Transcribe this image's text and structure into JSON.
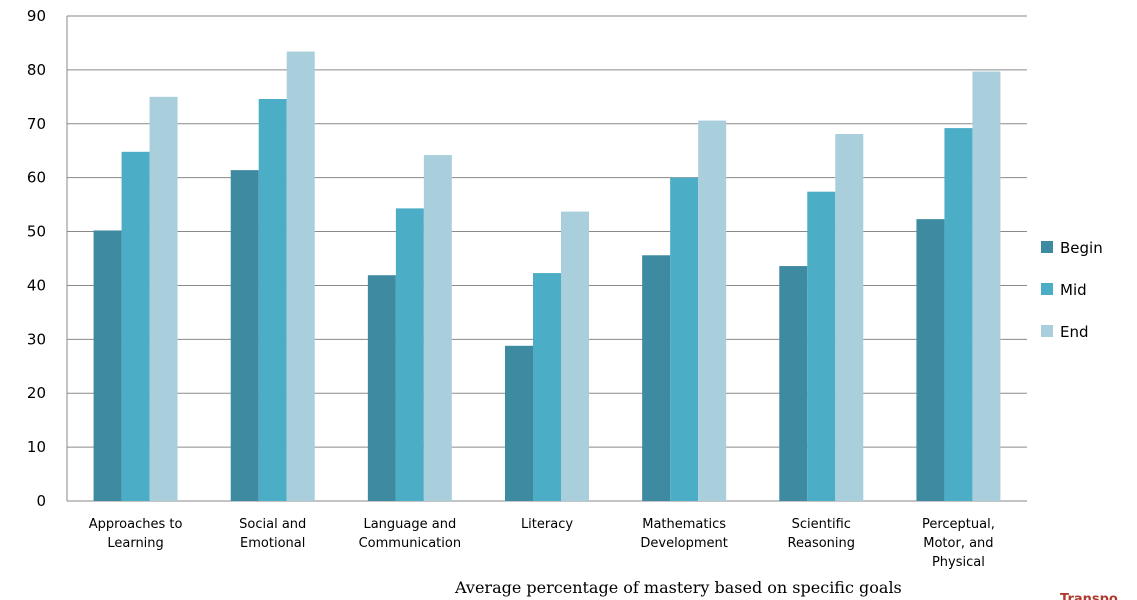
{
  "chart_data": {
    "type": "bar",
    "categories": [
      [
        "Approaches to",
        "Learning"
      ],
      [
        "Social and",
        "Emotional"
      ],
      [
        "Language and",
        "Communication"
      ],
      [
        "Literacy"
      ],
      [
        "Mathematics",
        "Development"
      ],
      [
        "Scientific",
        "Reasoning"
      ],
      [
        "Perceptual,",
        "Motor, and",
        "Physical"
      ]
    ],
    "series": [
      {
        "name": "Begin",
        "color": "#3e8aa1",
        "values": [
          50.2,
          61.4,
          41.9,
          28.8,
          45.6,
          43.6,
          52.3
        ]
      },
      {
        "name": "Mid",
        "color": "#4cadc7",
        "values": [
          64.8,
          74.6,
          54.3,
          42.3,
          60.0,
          57.4,
          69.2
        ]
      },
      {
        "name": "End",
        "color": "#a9cfdd",
        "values": [
          75.0,
          83.4,
          64.2,
          53.7,
          70.6,
          68.1,
          79.7
        ]
      }
    ],
    "ylim": [
      0,
      90
    ],
    "yticks": [
      0,
      10,
      20,
      30,
      40,
      50,
      60,
      70,
      80,
      90
    ],
    "grid": true,
    "legend_position": "right",
    "title": "",
    "xlabel": "",
    "ylabel": ""
  },
  "caption": "Average percentage of mastery based on specific goals",
  "corner_text": "Transpo"
}
